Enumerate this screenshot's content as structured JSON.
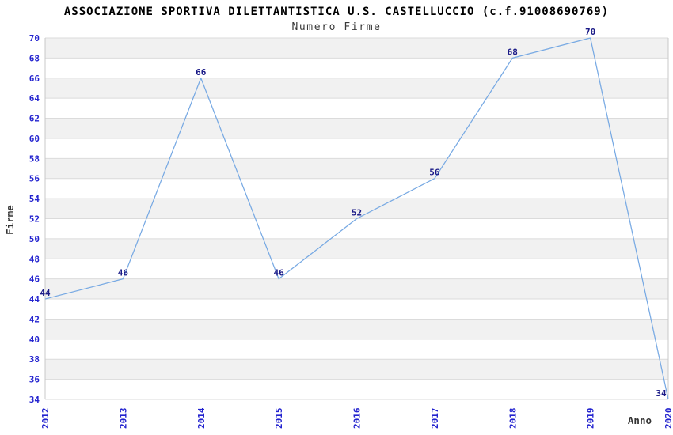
{
  "chart_data": {
    "type": "line",
    "title": "ASSOCIAZIONE SPORTIVA DILETTANTISTICA U.S. CASTELLUCCIO (c.f.91008690769)",
    "subtitle": "Numero Firme",
    "xlabel": "Anno",
    "ylabel": "Firme",
    "categories": [
      "2012",
      "2013",
      "2014",
      "2015",
      "2016",
      "2017",
      "2018",
      "2019",
      "2020"
    ],
    "values": [
      44,
      46,
      66,
      46,
      52,
      56,
      68,
      70,
      34
    ],
    "ylim": [
      34,
      70
    ],
    "ytick_step": 2,
    "grid": true,
    "legend": "none",
    "colors": {
      "line": "#77A9E3",
      "axis_tick_label": "#2323CF",
      "data_label": "#1A1A87",
      "axis_title": "#333333",
      "band_alt": "#F1F1F1",
      "band_base": "#FFFFFF",
      "gridline": "#DBDBDB",
      "plot_border": "#C8C8C8",
      "title": "#000000",
      "subtitle": "#3A3A3A"
    }
  }
}
